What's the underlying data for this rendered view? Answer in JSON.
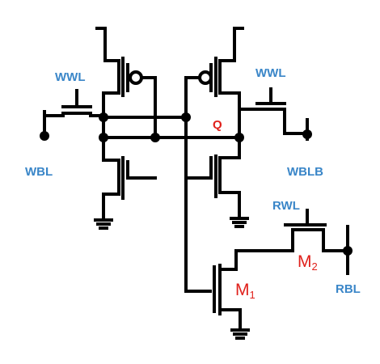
{
  "labels": {
    "wwl_left": "WWL",
    "wwl_right": "WWL",
    "wbl": "WBL",
    "wblb": "WBLB",
    "q": "Q",
    "rwl": "RWL",
    "rbl": "RBL",
    "m1_letter": "M",
    "m1_sub": "1",
    "m2_letter": "M",
    "m2_sub": "2"
  },
  "colors": {
    "wire": "#000000",
    "signal_label": "#3a86c8",
    "node_label": "#e0201b"
  }
}
